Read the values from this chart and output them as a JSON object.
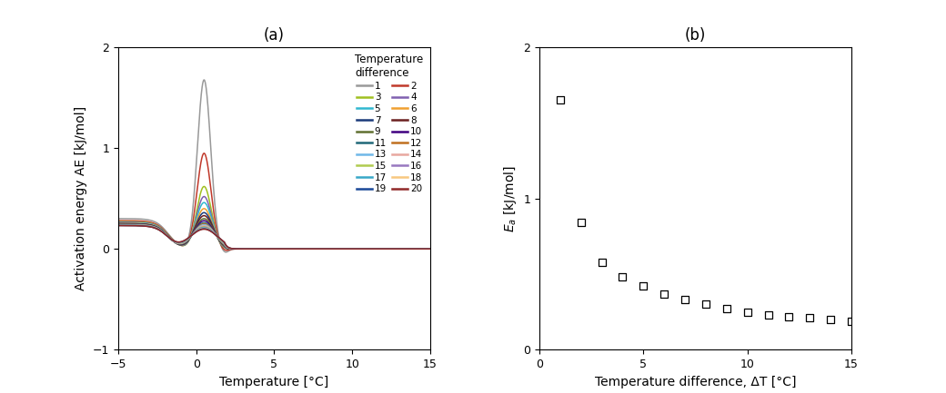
{
  "title_a": "(a)",
  "title_b": "(b)",
  "xlabel_a": "Temperature [°C]",
  "ylabel_a": "Activation energy AE [kJ/mol]",
  "xlabel_b": "Temperature difference, ΔT [°C]",
  "xlim_a": [
    -5,
    15
  ],
  "ylim_a": [
    -1,
    2
  ],
  "xlim_b": [
    0,
    15
  ],
  "ylim_b": [
    0,
    2
  ],
  "xticks_a": [
    -5,
    0,
    5,
    10,
    15
  ],
  "yticks_a": [
    -1,
    0,
    1,
    2
  ],
  "xticks_b": [
    0,
    5,
    10,
    15
  ],
  "yticks_b": [
    0,
    1,
    2
  ],
  "legend_title": "Temperature\ndifference",
  "colors": {
    "1": "#999999",
    "2": "#c0392b",
    "3": "#a0c020",
    "4": "#8060b0",
    "5": "#30b8d0",
    "6": "#f0a030",
    "7": "#1a3a7a",
    "8": "#6b2020",
    "9": "#607030",
    "10": "#400080",
    "11": "#206878",
    "12": "#c07020",
    "13": "#70b8e8",
    "14": "#e8a8a0",
    "15": "#b0cc50",
    "16": "#9878c0",
    "17": "#38a8c8",
    "18": "#f8c880",
    "19": "#1a4898",
    "20": "#902828"
  },
  "peak_amps": [
    1.68,
    0.95,
    0.62,
    0.52,
    0.46,
    0.4,
    0.36,
    0.33,
    0.3,
    0.28,
    0.26,
    0.25,
    0.24,
    0.23,
    0.22,
    0.215,
    0.21,
    0.205,
    0.2,
    0.195
  ],
  "baselines": [
    0.3,
    0.28,
    0.27,
    0.265,
    0.26,
    0.255,
    0.25,
    0.25,
    0.248,
    0.246,
    0.244,
    0.242,
    0.24,
    0.238,
    0.236,
    0.235,
    0.234,
    0.233,
    0.232,
    0.231
  ],
  "scatter_x": [
    1,
    2,
    3,
    4,
    5,
    6,
    7,
    8,
    9,
    10,
    11,
    12,
    13,
    14,
    15
  ],
  "scatter_y": [
    1.65,
    0.84,
    0.58,
    0.48,
    0.42,
    0.37,
    0.33,
    0.3,
    0.27,
    0.25,
    0.23,
    0.22,
    0.21,
    0.2,
    0.19
  ]
}
